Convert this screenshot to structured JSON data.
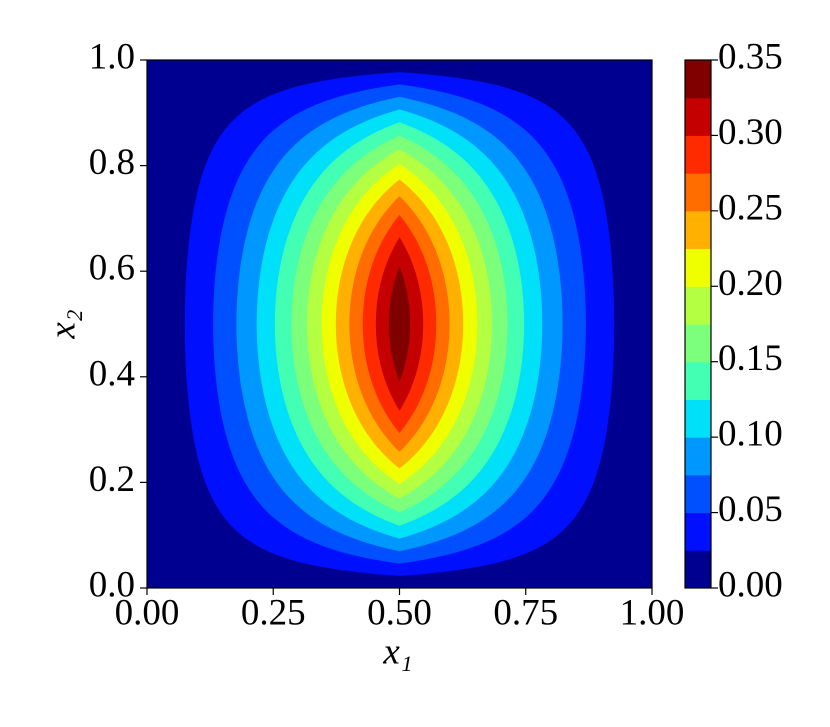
{
  "chart_data": {
    "type": "contour",
    "x_label": "x₁",
    "y_label": "x₂",
    "xlim": [
      0,
      1
    ],
    "ylim": [
      0,
      1
    ],
    "xticks": [
      {
        "value": 0,
        "label": "0.00"
      },
      {
        "value": 0.25,
        "label": "0.25"
      },
      {
        "value": 0.5,
        "label": "0.50"
      },
      {
        "value": 0.75,
        "label": "0.75"
      },
      {
        "value": 1,
        "label": "1.00"
      }
    ],
    "yticks": [
      {
        "value": 0,
        "label": "0.0"
      },
      {
        "value": 0.2,
        "label": "0.2"
      },
      {
        "value": 0.4,
        "label": "0.4"
      },
      {
        "value": 0.6,
        "label": "0.6"
      },
      {
        "value": 0.8,
        "label": "0.8"
      },
      {
        "value": 1,
        "label": "1.0"
      }
    ],
    "levels": [
      0,
      0.025,
      0.05,
      0.075,
      0.1,
      0.125,
      0.15,
      0.175,
      0.2,
      0.225,
      0.25,
      0.275,
      0.3,
      0.325,
      0.35
    ],
    "colors": [
      "#000090",
      "#0010ff",
      "#0050ff",
      "#0098ff",
      "#00e0f8",
      "#42ffb4",
      "#7cff7a",
      "#b4ff42",
      "#f0ff00",
      "#ffb000",
      "#ff6c00",
      "#ff2a00",
      "#c40000",
      "#800000"
    ],
    "colorbar_ticks": [
      {
        "value": 0,
        "label": "0.00"
      },
      {
        "value": 0.05,
        "label": "0.05"
      },
      {
        "value": 0.1,
        "label": "0.10"
      },
      {
        "value": 0.15,
        "label": "0.15"
      },
      {
        "value": 0.2,
        "label": "0.20"
      },
      {
        "value": 0.25,
        "label": "0.25"
      },
      {
        "value": 0.3,
        "label": "0.30"
      },
      {
        "value": 0.35,
        "label": "0.35"
      }
    ]
  }
}
